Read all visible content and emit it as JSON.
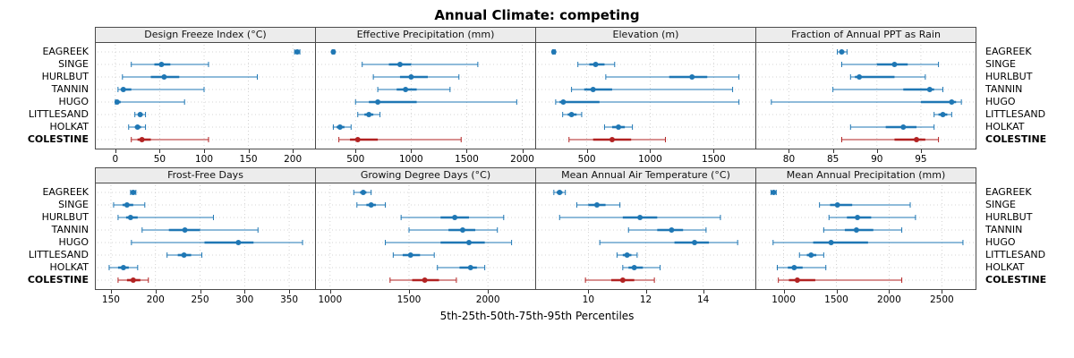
{
  "title": "Annual Climate: competing",
  "xlabel": "5th-25th-50th-75th-95th Percentiles",
  "sites": [
    "EAGREEK",
    "SINGE",
    "HURLBUT",
    "TANNIN",
    "HUGO",
    "LITTLESAND",
    "HOLKAT",
    "COLESTINE"
  ],
  "highlight_site": "COLESTINE",
  "colors": {
    "series_normal": "#1f77b4",
    "series_highlight": "#b22222",
    "strip_bg": "#ececec",
    "panel_border": "#4a4a4a",
    "grid": "#c8c8c8"
  },
  "chart_data": [
    {
      "type": "interval",
      "title": "Design Freeze Index (°C)",
      "xlim": [
        -15,
        218
      ],
      "ticks": [
        0,
        50,
        100,
        150,
        200
      ],
      "series": [
        {
          "name": "EAGREEK",
          "p": [
            202,
            204,
            205,
            206,
            208
          ]
        },
        {
          "name": "SINGE",
          "p": [
            18,
            44,
            52,
            62,
            105
          ]
        },
        {
          "name": "HURLBUT",
          "p": [
            8,
            40,
            55,
            72,
            160
          ]
        },
        {
          "name": "TANNIN",
          "p": [
            3,
            6,
            9,
            18,
            100
          ]
        },
        {
          "name": "HUGO",
          "p": [
            0,
            1,
            2,
            6,
            78
          ]
        },
        {
          "name": "LITTLESAND",
          "p": [
            22,
            26,
            28,
            31,
            34
          ]
        },
        {
          "name": "HOLKAT",
          "p": [
            15,
            22,
            25,
            29,
            34
          ]
        },
        {
          "name": "COLESTINE",
          "p": [
            18,
            25,
            30,
            40,
            105
          ]
        }
      ]
    },
    {
      "type": "interval",
      "title": "Effective Precipitation (mm)",
      "xlim": [
        200,
        2060
      ],
      "ticks": [
        500,
        1000,
        1500,
        2000
      ],
      "series": [
        {
          "name": "EAGREEK",
          "p": [
            290,
            296,
            300,
            305,
            312
          ]
        },
        {
          "name": "SINGE",
          "p": [
            560,
            800,
            900,
            1000,
            1600
          ]
        },
        {
          "name": "HURLBUT",
          "p": [
            660,
            900,
            1000,
            1150,
            1430
          ]
        },
        {
          "name": "TANNIN",
          "p": [
            700,
            870,
            950,
            1050,
            1350
          ]
        },
        {
          "name": "HUGO",
          "p": [
            500,
            620,
            700,
            1050,
            1950
          ]
        },
        {
          "name": "LITTLESAND",
          "p": [
            520,
            580,
            620,
            660,
            720
          ]
        },
        {
          "name": "HOLKAT",
          "p": [
            300,
            330,
            360,
            400,
            460
          ]
        },
        {
          "name": "COLESTINE",
          "p": [
            350,
            450,
            520,
            700,
            1450
          ]
        }
      ]
    },
    {
      "type": "interval",
      "title": "Elevation (m)",
      "xlim": [
        150,
        1780
      ],
      "ticks": [
        500,
        1000,
        1500
      ],
      "series": [
        {
          "name": "EAGREEK",
          "p": [
            230,
            236,
            240,
            245,
            251
          ]
        },
        {
          "name": "SINGE",
          "p": [
            430,
            520,
            570,
            640,
            720
          ]
        },
        {
          "name": "HURLBUT",
          "p": [
            650,
            1150,
            1330,
            1450,
            1700
          ]
        },
        {
          "name": "TANNIN",
          "p": [
            380,
            480,
            550,
            700,
            1650
          ]
        },
        {
          "name": "HUGO",
          "p": [
            255,
            285,
            315,
            600,
            1700
          ]
        },
        {
          "name": "LITTLESAND",
          "p": [
            310,
            350,
            380,
            420,
            460
          ]
        },
        {
          "name": "HOLKAT",
          "p": [
            640,
            700,
            750,
            800,
            860
          ]
        },
        {
          "name": "COLESTINE",
          "p": [
            360,
            550,
            700,
            850,
            1120
          ]
        }
      ]
    },
    {
      "type": "interval",
      "title": "Fraction of Annual PPT as Rain",
      "xlim": [
        77,
        100.5
      ],
      "ticks": [
        80,
        85,
        90,
        95
      ],
      "series": [
        {
          "name": "EAGREEK",
          "p": [
            85.5,
            85.8,
            86.0,
            86.3,
            86.6
          ]
        },
        {
          "name": "SINGE",
          "p": [
            86.0,
            90.0,
            92.0,
            93.5,
            97.0
          ]
        },
        {
          "name": "HURLBUT",
          "p": [
            87.0,
            87.5,
            88.0,
            92.0,
            95.5
          ]
        },
        {
          "name": "TANNIN",
          "p": [
            85.0,
            93.0,
            96.0,
            96.5,
            97.5
          ]
        },
        {
          "name": "HUGO",
          "p": [
            78.0,
            95.0,
            98.5,
            99.0,
            99.6
          ]
        },
        {
          "name": "LITTLESAND",
          "p": [
            96.5,
            97.0,
            97.5,
            98.0,
            98.5
          ]
        },
        {
          "name": "HOLKAT",
          "p": [
            87.0,
            91.0,
            93.0,
            94.5,
            96.5
          ]
        },
        {
          "name": "COLESTINE",
          "p": [
            86.0,
            92.0,
            94.5,
            95.5,
            97.0
          ]
        }
      ]
    },
    {
      "type": "interval",
      "title": "Frost-Free Days",
      "xlim": [
        140,
        372
      ],
      "ticks": [
        150,
        200,
        250,
        300,
        350
      ],
      "series": [
        {
          "name": "EAGREEK",
          "p": [
            172,
            174,
            175,
            176,
            178
          ]
        },
        {
          "name": "SINGE",
          "p": [
            153,
            163,
            168,
            175,
            188
          ]
        },
        {
          "name": "HURLBUT",
          "p": [
            158,
            167,
            172,
            180,
            265
          ]
        },
        {
          "name": "TANNIN",
          "p": [
            185,
            215,
            233,
            250,
            315
          ]
        },
        {
          "name": "HUGO",
          "p": [
            173,
            255,
            293,
            310,
            365
          ]
        },
        {
          "name": "LITTLESAND",
          "p": [
            213,
            225,
            232,
            240,
            252
          ]
        },
        {
          "name": "HOLKAT",
          "p": [
            148,
            158,
            164,
            170,
            180
          ]
        },
        {
          "name": "COLESTINE",
          "p": [
            158,
            168,
            175,
            183,
            192
          ]
        }
      ]
    },
    {
      "type": "interval",
      "title": "Growing Degree Days (°C)",
      "xlim": [
        950,
        2260
      ],
      "ticks": [
        1000,
        1500,
        2000
      ],
      "series": [
        {
          "name": "EAGREEK",
          "p": [
            1150,
            1190,
            1210,
            1230,
            1260
          ]
        },
        {
          "name": "SINGE",
          "p": [
            1170,
            1230,
            1260,
            1290,
            1350
          ]
        },
        {
          "name": "HURLBUT",
          "p": [
            1450,
            1700,
            1790,
            1880,
            2100
          ]
        },
        {
          "name": "TANNIN",
          "p": [
            1500,
            1750,
            1840,
            1920,
            2060
          ]
        },
        {
          "name": "HUGO",
          "p": [
            1350,
            1700,
            1880,
            1980,
            2150
          ]
        },
        {
          "name": "LITTLESAND",
          "p": [
            1400,
            1460,
            1510,
            1570,
            1660
          ]
        },
        {
          "name": "HOLKAT",
          "p": [
            1680,
            1820,
            1890,
            1930,
            1980
          ]
        },
        {
          "name": "COLESTINE",
          "p": [
            1380,
            1520,
            1600,
            1690,
            1800
          ]
        }
      ]
    },
    {
      "type": "interval",
      "title": "Mean Annual Air Temperature (°C)",
      "xlim": [
        8.4,
        15.6
      ],
      "ticks": [
        10,
        12,
        14
      ],
      "series": [
        {
          "name": "EAGREEK",
          "p": [
            8.8,
            8.9,
            9.0,
            9.1,
            9.2
          ]
        },
        {
          "name": "SINGE",
          "p": [
            9.6,
            10.0,
            10.3,
            10.6,
            11.1
          ]
        },
        {
          "name": "HURLBUT",
          "p": [
            9.0,
            11.2,
            11.8,
            12.4,
            14.6
          ]
        },
        {
          "name": "TANNIN",
          "p": [
            11.4,
            12.4,
            12.9,
            13.3,
            14.1
          ]
        },
        {
          "name": "HUGO",
          "p": [
            10.4,
            13.0,
            13.7,
            14.2,
            15.2
          ]
        },
        {
          "name": "LITTLESAND",
          "p": [
            11.0,
            11.2,
            11.35,
            11.5,
            11.7
          ]
        },
        {
          "name": "HOLKAT",
          "p": [
            11.2,
            11.4,
            11.6,
            11.9,
            12.5
          ]
        },
        {
          "name": "COLESTINE",
          "p": [
            9.9,
            10.8,
            11.2,
            11.6,
            12.3
          ]
        }
      ]
    },
    {
      "type": "interval",
      "title": "Mean Annual Precipitation (mm)",
      "xlim": [
        800,
        2760
      ],
      "ticks": [
        1000,
        1500,
        2000,
        2500
      ],
      "series": [
        {
          "name": "EAGREEK",
          "p": [
            880,
            895,
            905,
            915,
            930
          ]
        },
        {
          "name": "SINGE",
          "p": [
            1340,
            1440,
            1510,
            1650,
            2200
          ]
        },
        {
          "name": "HURLBUT",
          "p": [
            1430,
            1600,
            1700,
            1830,
            2250
          ]
        },
        {
          "name": "TANNIN",
          "p": [
            1380,
            1580,
            1690,
            1850,
            2120
          ]
        },
        {
          "name": "HUGO",
          "p": [
            900,
            1280,
            1450,
            1800,
            2700
          ]
        },
        {
          "name": "LITTLESAND",
          "p": [
            1150,
            1220,
            1260,
            1310,
            1380
          ]
        },
        {
          "name": "HOLKAT",
          "p": [
            940,
            1040,
            1100,
            1180,
            1400
          ]
        },
        {
          "name": "COLESTINE",
          "p": [
            950,
            1050,
            1130,
            1300,
            2120
          ]
        }
      ]
    }
  ]
}
